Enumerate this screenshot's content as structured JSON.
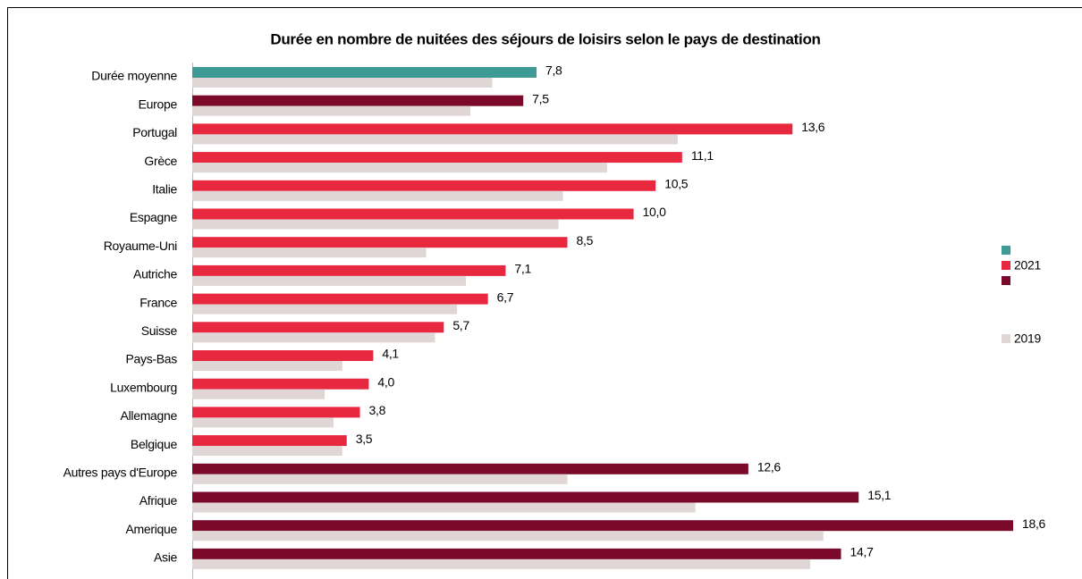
{
  "chart_data": {
    "type": "bar",
    "orientation": "horizontal",
    "title": "Durée en nombre de nuitées des séjours de loisirs selon le pays de destination",
    "categories": [
      "Durée moyenne",
      "Europe",
      "Portugal",
      "Grèce",
      "Italie",
      "Espagne",
      "Royaume-Uni",
      "Autriche",
      "France",
      "Suisse",
      "Pays-Bas",
      "Luxembourg",
      "Allemagne",
      "Belgique",
      "Autres pays d'Europe",
      "Afrique",
      "Amerique",
      "Asie"
    ],
    "series": [
      {
        "name": "2021",
        "colors": [
          "#3e9a94",
          "#7b0a2a",
          "#e8283f",
          "#e8283f",
          "#e8283f",
          "#e8283f",
          "#e8283f",
          "#e8283f",
          "#e8283f",
          "#e8283f",
          "#e8283f",
          "#e8283f",
          "#e8283f",
          "#e8283f",
          "#7b0a2a",
          "#7b0a2a",
          "#7b0a2a",
          "#7b0a2a"
        ],
        "legend_colors": [
          "#3e9a94",
          "#e8283f",
          "#7b0a2a"
        ],
        "values": [
          7.8,
          7.5,
          13.6,
          11.1,
          10.5,
          10.0,
          8.5,
          7.1,
          6.7,
          5.7,
          4.1,
          4.0,
          3.8,
          3.5,
          12.6,
          15.1,
          18.6,
          14.7
        ],
        "value_labels": [
          "7,8",
          "7,5",
          "13,6",
          "11,1",
          "10,5",
          "10,0",
          "8,5",
          "7,1",
          "6,7",
          "5,7",
          "4,1",
          "4,0",
          "3,8",
          "3,5",
          "12,6",
          "15,1",
          "18,6",
          "14,7"
        ]
      },
      {
        "name": "2019",
        "color": "#e0d6d6",
        "values": [
          6.8,
          6.3,
          11.0,
          9.4,
          8.4,
          8.3,
          5.3,
          6.2,
          6.0,
          5.5,
          3.4,
          3.0,
          3.2,
          3.4,
          8.5,
          11.4,
          14.3,
          14.0
        ]
      }
    ],
    "xlim": [
      0,
      18.6
    ]
  }
}
